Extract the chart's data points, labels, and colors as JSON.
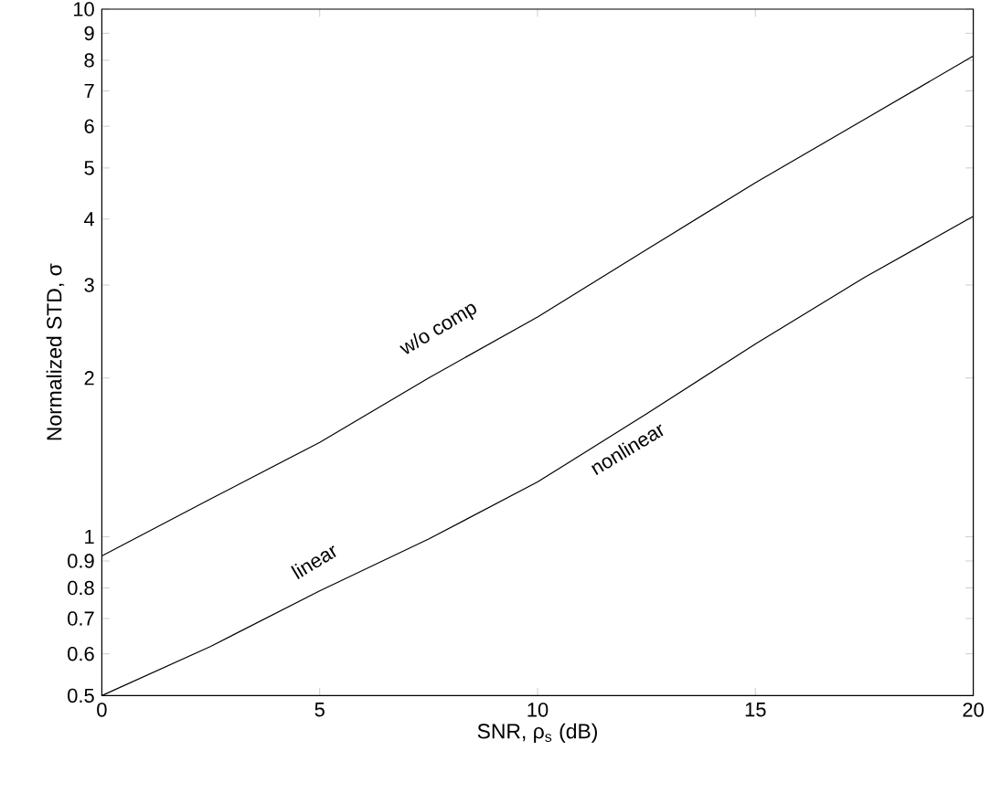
{
  "chart_data": {
    "type": "line",
    "xlabel": "SNR, ρ$_{s}$ (dB)",
    "ylabel": "Normalized STD, σ",
    "log": "y",
    "xlim": [
      0,
      20
    ],
    "ylim": [
      0.5,
      10
    ],
    "xticks": [
      0,
      5,
      10,
      15,
      20
    ],
    "yticks": [
      0.5,
      0.6,
      0.7,
      0.8,
      0.9,
      1,
      2,
      3,
      4,
      5,
      6,
      7,
      8,
      9,
      10
    ],
    "x": [
      0,
      2.5,
      5,
      7.5,
      10,
      12.5,
      15,
      17.5,
      20
    ],
    "series": [
      {
        "color": "#000000",
        "values": [
          0.92,
          1.18,
          1.51,
          2.0,
          2.61,
          3.5,
          4.69,
          6.18,
          8.15
        ]
      },
      {
        "color": "#000000",
        "values": [
          0.5,
          0.62,
          0.79,
          0.99,
          1.27,
          1.71,
          2.32,
          3.1,
          4.05
        ]
      }
    ],
    "annotations": [
      "w/o comp",
      "linear",
      "nonlinear"
    ]
  }
}
